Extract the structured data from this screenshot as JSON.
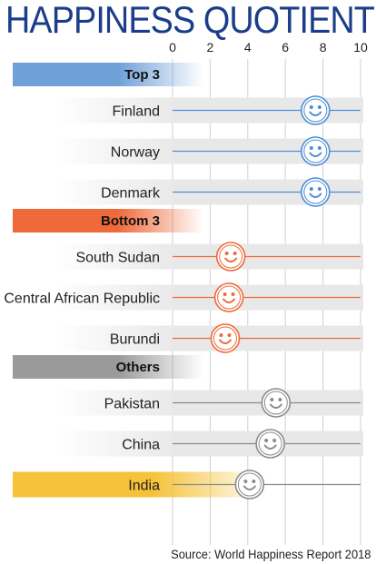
{
  "title": "HAPPINESS QUOTIENT",
  "source": "Source: World Happiness Report 2018",
  "chart_data": {
    "type": "scatter",
    "title": "HAPPINESS QUOTIENT",
    "xlim": [
      0,
      10
    ],
    "x_ticks": [
      "0",
      "2",
      "4",
      "6",
      "8",
      "10"
    ],
    "grid": true,
    "groups": [
      {
        "name": "Top 3",
        "color": "#6fa0d8",
        "marker_color": "#4d8ed6",
        "items": [
          {
            "label": "Finland",
            "value": 7.6
          },
          {
            "label": "Norway",
            "value": 7.6
          },
          {
            "label": "Denmark",
            "value": 7.6
          }
        ]
      },
      {
        "name": "Bottom 3",
        "color": "#ef6a3a",
        "marker_color": "#ef6a3a",
        "items": [
          {
            "label": "South Sudan",
            "value": 3.1
          },
          {
            "label": "Central African Republic",
            "value": 3.0
          },
          {
            "label": "Burundi",
            "value": 2.8
          }
        ]
      },
      {
        "name": "Others",
        "color": "#9a9a9a",
        "marker_color": "#8c8c8c",
        "items": [
          {
            "label": "Pakistan",
            "value": 5.5
          },
          {
            "label": "China",
            "value": 5.2
          },
          {
            "label": "India",
            "value": 4.1,
            "highlight": "#f6c23a"
          }
        ]
      }
    ]
  }
}
